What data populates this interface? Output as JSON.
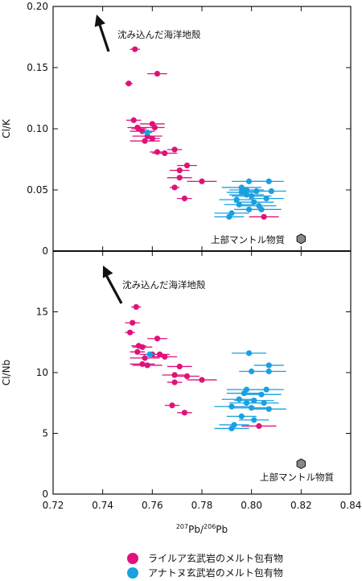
{
  "chart_data": [
    {
      "type": "scatter",
      "ylabel": "Cl/K",
      "xlim": [
        0.72,
        0.84
      ],
      "ylim": [
        0,
        0.2
      ],
      "yticks": [
        "0",
        "0.05",
        "0.10",
        "0.15",
        "0.20"
      ],
      "yticks_values": [
        0,
        0.05,
        0.1,
        0.15,
        0.2
      ],
      "arrow_label": "沈み込んだ海洋地殻",
      "mantle_label": "上部マントル物質",
      "mantle_point": {
        "x": 0.82,
        "y": 0.01
      },
      "series": [
        {
          "name": "ライルア玄武岩のメルト包有物",
          "color": "#e0127a",
          "points": [
            {
              "x": 0.753,
              "y": 0.165,
              "xerr": 0.002
            },
            {
              "x": 0.762,
              "y": 0.145,
              "xerr": 0.004
            },
            {
              "x": 0.7505,
              "y": 0.137,
              "xerr": 0.0015
            },
            {
              "x": 0.7525,
              "y": 0.107,
              "xerr": 0.003
            },
            {
              "x": 0.754,
              "y": 0.101,
              "xerr": 0.004
            },
            {
              "x": 0.7545,
              "y": 0.1,
              "xerr": 0.003
            },
            {
              "x": 0.76,
              "y": 0.104,
              "xerr": 0.005
            },
            {
              "x": 0.761,
              "y": 0.101,
              "xerr": 0.004
            },
            {
              "x": 0.756,
              "y": 0.098,
              "xerr": 0.005
            },
            {
              "x": 0.758,
              "y": 0.094,
              "xerr": 0.006
            },
            {
              "x": 0.76,
              "y": 0.092,
              "xerr": 0.003
            },
            {
              "x": 0.757,
              "y": 0.09,
              "xerr": 0.006
            },
            {
              "x": 0.762,
              "y": 0.081,
              "xerr": 0.003
            },
            {
              "x": 0.765,
              "y": 0.08,
              "xerr": 0.005
            },
            {
              "x": 0.769,
              "y": 0.083,
              "xerr": 0.003
            },
            {
              "x": 0.774,
              "y": 0.07,
              "xerr": 0.004
            },
            {
              "x": 0.771,
              "y": 0.066,
              "xerr": 0.004
            },
            {
              "x": 0.771,
              "y": 0.06,
              "xerr": 0.005
            },
            {
              "x": 0.78,
              "y": 0.057,
              "xerr": 0.006
            },
            {
              "x": 0.769,
              "y": 0.052,
              "xerr": 0.002
            },
            {
              "x": 0.773,
              "y": 0.043,
              "xerr": 0.003
            },
            {
              "x": 0.805,
              "y": 0.028,
              "xerr": 0.006
            }
          ]
        },
        {
          "name": "アナトヌ玄武岩のメルト包有物",
          "color": "#1aa0e0",
          "points": [
            {
              "x": 0.758,
              "y": 0.097,
              "xerr": 0.002
            },
            {
              "x": 0.799,
              "y": 0.057,
              "xerr": 0.007
            },
            {
              "x": 0.807,
              "y": 0.057,
              "xerr": 0.006
            },
            {
              "x": 0.796,
              "y": 0.052,
              "xerr": 0.008
            },
            {
              "x": 0.798,
              "y": 0.05,
              "xerr": 0.007
            },
            {
              "x": 0.796,
              "y": 0.048,
              "xerr": 0.006
            },
            {
              "x": 0.802,
              "y": 0.049,
              "xerr": 0.007
            },
            {
              "x": 0.808,
              "y": 0.049,
              "xerr": 0.006
            },
            {
              "x": 0.798,
              "y": 0.046,
              "xerr": 0.007
            },
            {
              "x": 0.8,
              "y": 0.045,
              "xerr": 0.008
            },
            {
              "x": 0.806,
              "y": 0.043,
              "xerr": 0.007
            },
            {
              "x": 0.794,
              "y": 0.042,
              "xerr": 0.007
            },
            {
              "x": 0.801,
              "y": 0.04,
              "xerr": 0.008
            },
            {
              "x": 0.795,
              "y": 0.038,
              "xerr": 0.006
            },
            {
              "x": 0.803,
              "y": 0.037,
              "xerr": 0.007
            },
            {
              "x": 0.799,
              "y": 0.034,
              "xerr": 0.006
            },
            {
              "x": 0.804,
              "y": 0.034,
              "xerr": 0.008
            },
            {
              "x": 0.792,
              "y": 0.031,
              "xerr": 0.007
            },
            {
              "x": 0.791,
              "y": 0.028,
              "xerr": 0.006
            }
          ]
        }
      ]
    },
    {
      "type": "scatter",
      "ylabel": "Cl/Nb",
      "xlabel_parts": {
        "sup1": "207",
        "t1": "Pb/",
        "sup2": "206",
        "t2": "Pb"
      },
      "xlim": [
        0.72,
        0.84
      ],
      "ylim": [
        0,
        20
      ],
      "xticks": [
        "0.72",
        "0.74",
        "0.76",
        "0.78",
        "0.80",
        "0.82",
        "0.84"
      ],
      "xticks_values": [
        0.72,
        0.74,
        0.76,
        0.78,
        0.8,
        0.82,
        0.84
      ],
      "yticks": [
        "0",
        "5",
        "10",
        "15"
      ],
      "yticks_values": [
        0,
        5,
        10,
        15
      ],
      "arrow_label": "沈み込んだ海洋地殻",
      "mantle_label": "上部マントル物質",
      "mantle_point": {
        "x": 0.82,
        "y": 2.5
      },
      "series": [
        {
          "name": "ライルア玄武岩のメルト包有物",
          "color": "#e0127a",
          "points": [
            {
              "x": 0.7535,
              "y": 15.4,
              "xerr": 0.002
            },
            {
              "x": 0.752,
              "y": 14.1,
              "xerr": 0.003
            },
            {
              "x": 0.751,
              "y": 13.3,
              "xerr": 0.002
            },
            {
              "x": 0.762,
              "y": 12.8,
              "xerr": 0.004
            },
            {
              "x": 0.7545,
              "y": 12.2,
              "xerr": 0.003
            },
            {
              "x": 0.756,
              "y": 12.1,
              "xerr": 0.004
            },
            {
              "x": 0.754,
              "y": 11.7,
              "xerr": 0.003
            },
            {
              "x": 0.76,
              "y": 11.5,
              "xerr": 0.005
            },
            {
              "x": 0.763,
              "y": 11.5,
              "xerr": 0.004
            },
            {
              "x": 0.765,
              "y": 11.3,
              "xerr": 0.005
            },
            {
              "x": 0.757,
              "y": 11.2,
              "xerr": 0.006
            },
            {
              "x": 0.756,
              "y": 10.7,
              "xerr": 0.005
            },
            {
              "x": 0.758,
              "y": 10.6,
              "xerr": 0.006
            },
            {
              "x": 0.771,
              "y": 10.5,
              "xerr": 0.005
            },
            {
              "x": 0.769,
              "y": 9.8,
              "xerr": 0.005
            },
            {
              "x": 0.774,
              "y": 9.7,
              "xerr": 0.005
            },
            {
              "x": 0.78,
              "y": 9.4,
              "xerr": 0.006
            },
            {
              "x": 0.769,
              "y": 9.2,
              "xerr": 0.003
            },
            {
              "x": 0.768,
              "y": 7.3,
              "xerr": 0.003
            },
            {
              "x": 0.773,
              "y": 6.7,
              "xerr": 0.003
            },
            {
              "x": 0.803,
              "y": 5.6,
              "xerr": 0.007
            }
          ]
        },
        {
          "name": "アナトヌ玄武岩のメルト包有物",
          "color": "#1aa0e0",
          "points": [
            {
              "x": 0.759,
              "y": 11.5,
              "xerr": 0.002
            },
            {
              "x": 0.799,
              "y": 11.6,
              "xerr": 0.007
            },
            {
              "x": 0.807,
              "y": 10.6,
              "xerr": 0.006
            },
            {
              "x": 0.8,
              "y": 10.1,
              "xerr": 0.005
            },
            {
              "x": 0.807,
              "y": 10.1,
              "xerr": 0.007
            },
            {
              "x": 0.798,
              "y": 8.6,
              "xerr": 0.008
            },
            {
              "x": 0.806,
              "y": 8.6,
              "xerr": 0.007
            },
            {
              "x": 0.797,
              "y": 8.3,
              "xerr": 0.007
            },
            {
              "x": 0.804,
              "y": 8.2,
              "xerr": 0.008
            },
            {
              "x": 0.795,
              "y": 7.8,
              "xerr": 0.007
            },
            {
              "x": 0.801,
              "y": 7.7,
              "xerr": 0.008
            },
            {
              "x": 0.798,
              "y": 7.5,
              "xerr": 0.007
            },
            {
              "x": 0.805,
              "y": 7.5,
              "xerr": 0.006
            },
            {
              "x": 0.792,
              "y": 7.2,
              "xerr": 0.007
            },
            {
              "x": 0.8,
              "y": 7.1,
              "xerr": 0.008
            },
            {
              "x": 0.807,
              "y": 7.0,
              "xerr": 0.007
            },
            {
              "x": 0.796,
              "y": 6.4,
              "xerr": 0.006
            },
            {
              "x": 0.801,
              "y": 6.1,
              "xerr": 0.006
            },
            {
              "x": 0.793,
              "y": 5.7,
              "xerr": 0.006
            },
            {
              "x": 0.792,
              "y": 5.4,
              "xerr": 0.007
            }
          ]
        }
      ]
    }
  ],
  "legend": [
    {
      "label": "ライルア玄武岩のメルト包有物",
      "color": "#e0127a"
    },
    {
      "label": "アナトヌ玄武岩のメルト包有物",
      "color": "#1aa0e0"
    }
  ],
  "mantle_color": "#888888"
}
